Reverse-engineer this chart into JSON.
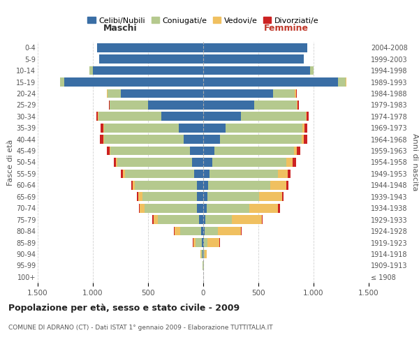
{
  "age_groups": [
    "100+",
    "95-99",
    "90-94",
    "85-89",
    "80-84",
    "75-79",
    "70-74",
    "65-69",
    "60-64",
    "55-59",
    "50-54",
    "45-49",
    "40-44",
    "35-39",
    "30-34",
    "25-29",
    "20-24",
    "15-19",
    "10-14",
    "5-9",
    "0-4"
  ],
  "birth_years": [
    "≤ 1908",
    "1909-1913",
    "1914-1918",
    "1919-1923",
    "1924-1928",
    "1929-1933",
    "1934-1938",
    "1939-1943",
    "1944-1948",
    "1949-1953",
    "1954-1958",
    "1959-1963",
    "1964-1968",
    "1969-1973",
    "1974-1978",
    "1979-1983",
    "1984-1988",
    "1989-1993",
    "1994-1998",
    "1999-2003",
    "2004-2008"
  ],
  "male": {
    "celibi": [
      2,
      2,
      5,
      10,
      20,
      40,
      60,
      60,
      60,
      80,
      100,
      120,
      180,
      220,
      380,
      500,
      750,
      1260,
      1000,
      940,
      960
    ],
    "coniugati": [
      0,
      3,
      15,
      60,
      190,
      370,
      470,
      490,
      560,
      630,
      680,
      720,
      720,
      680,
      570,
      350,
      120,
      40,
      30,
      0,
      0
    ],
    "vedovi": [
      0,
      0,
      5,
      20,
      50,
      40,
      45,
      40,
      20,
      15,
      10,
      8,
      5,
      5,
      3,
      0,
      5,
      0,
      0,
      0,
      0
    ],
    "divorziati": [
      0,
      0,
      0,
      5,
      5,
      10,
      10,
      10,
      15,
      20,
      20,
      25,
      30,
      25,
      15,
      5,
      0,
      0,
      0,
      0,
      0
    ]
  },
  "female": {
    "nubili": [
      1,
      2,
      2,
      5,
      10,
      20,
      30,
      35,
      45,
      55,
      80,
      100,
      150,
      200,
      340,
      460,
      630,
      1220,
      970,
      910,
      940
    ],
    "coniugate": [
      0,
      2,
      10,
      30,
      120,
      240,
      390,
      470,
      560,
      620,
      670,
      720,
      740,
      700,
      590,
      390,
      200,
      70,
      30,
      0,
      0
    ],
    "vedove": [
      0,
      5,
      20,
      110,
      210,
      270,
      260,
      210,
      150,
      90,
      60,
      30,
      20,
      15,
      8,
      5,
      10,
      5,
      0,
      0,
      0
    ],
    "divorziate": [
      0,
      0,
      0,
      5,
      5,
      10,
      15,
      15,
      20,
      25,
      30,
      30,
      35,
      30,
      20,
      10,
      5,
      0,
      0,
      0,
      0
    ]
  },
  "color_celibi": "#3a6ea5",
  "color_coniugati": "#b5c98e",
  "color_vedovi": "#f0c060",
  "color_divorziati": "#cc2222",
  "xlim": 1500,
  "title": "Popolazione per età, sesso e stato civile - 2009",
  "subtitle": "COMUNE DI ADRANO (CT) - Dati ISTAT 1° gennaio 2009 - Elaborazione TUTTITALIA.IT",
  "ylabel_left": "Fasce di età",
  "ylabel_right": "Anni di nascita",
  "xlabel_left": "Maschi",
  "xlabel_right": "Femmine",
  "background_color": "#ffffff",
  "grid_color": "#cccccc"
}
